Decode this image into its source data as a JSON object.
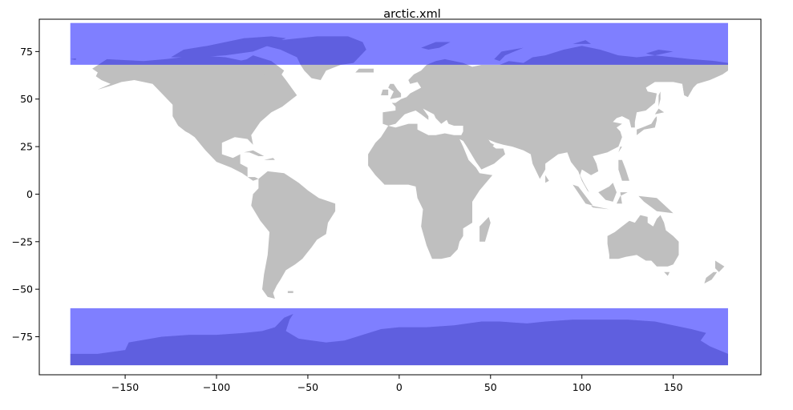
{
  "chart_data": {
    "type": "map",
    "title": "arctic.xml",
    "xlabel": "",
    "ylabel": "",
    "xlim": [
      -197,
      198
    ],
    "ylim": [
      -95,
      92
    ],
    "xticks": [
      -150,
      -100,
      -50,
      0,
      50,
      100,
      150
    ],
    "yticks": [
      75,
      50,
      25,
      0,
      -25,
      -50,
      -75
    ],
    "xtick_labels": [
      "−150",
      "−100",
      "−50",
      "0",
      "50",
      "100",
      "150"
    ],
    "ytick_labels": [
      "75",
      "50",
      "25",
      "0",
      "−25",
      "−50",
      "−75"
    ],
    "grid": false,
    "land_color": "#bfbfbf",
    "highlight_color": "#0000ff",
    "highlight_opacity": 0.5,
    "regions": [
      {
        "lon": [
          -180,
          180
        ],
        "lat": [
          68,
          90
        ]
      },
      {
        "lon": [
          -180,
          180
        ],
        "lat": [
          -90,
          -60
        ]
      }
    ]
  }
}
